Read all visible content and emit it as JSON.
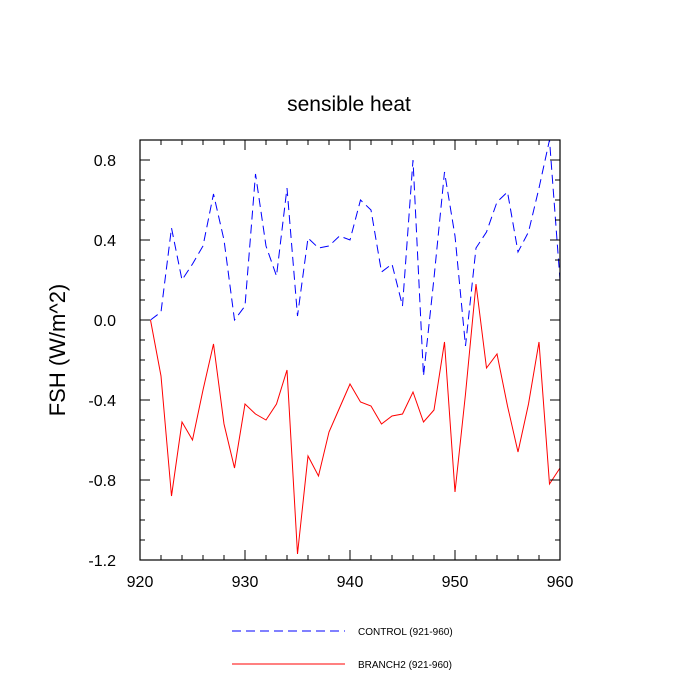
{
  "chart_data": {
    "type": "line",
    "title": "sensible heat",
    "ylabel": "FSH  (W/m^2)",
    "xlabel": "",
    "xlim": [
      921,
      960
    ],
    "ylim": [
      -1.2,
      0.9
    ],
    "xticks": [
      920,
      930,
      940,
      950,
      960
    ],
    "xtick_labels": [
      "920",
      "930",
      "940",
      "950",
      "960"
    ],
    "yticks": [
      0.8,
      0.4,
      0.0,
      -0.4,
      -0.8,
      -1.2
    ],
    "ytick_labels": [
      "0.8",
      "0.4",
      "0.0",
      "-0.4",
      "-0.8",
      "-1.2"
    ],
    "grid": false,
    "legend": "bottom",
    "x": [
      921,
      922,
      923,
      924,
      925,
      926,
      927,
      928,
      929,
      930,
      931,
      932,
      933,
      934,
      935,
      936,
      937,
      938,
      939,
      940,
      941,
      942,
      943,
      944,
      945,
      946,
      947,
      948,
      949,
      950,
      951,
      952,
      953,
      954,
      955,
      956,
      957,
      958,
      959,
      960
    ],
    "series": [
      {
        "name": "CONTROL (921-960)",
        "color": "#0000ff",
        "dash": "dashed",
        "values": [
          0.0,
          0.04,
          0.46,
          0.2,
          0.28,
          0.37,
          0.63,
          0.4,
          0.0,
          0.07,
          0.73,
          0.37,
          0.22,
          0.66,
          0.02,
          0.41,
          0.36,
          0.37,
          0.42,
          0.4,
          0.6,
          0.55,
          0.24,
          0.28,
          0.07,
          0.8,
          -0.28,
          0.21,
          0.74,
          0.42,
          -0.13,
          0.36,
          0.44,
          0.59,
          0.64,
          0.34,
          0.44,
          0.66,
          0.9,
          0.2
        ]
      },
      {
        "name": "BRANCH2 (921-960)",
        "color": "#ff0000",
        "dash": "solid",
        "values": [
          0.0,
          -0.28,
          -0.88,
          -0.51,
          -0.6,
          -0.35,
          -0.12,
          -0.52,
          -0.74,
          -0.42,
          -0.47,
          -0.5,
          -0.42,
          -0.25,
          -1.17,
          -0.68,
          -0.78,
          -0.56,
          -0.44,
          -0.32,
          -0.41,
          -0.43,
          -0.52,
          -0.48,
          -0.47,
          -0.36,
          -0.51,
          -0.45,
          -0.11,
          -0.86,
          -0.37,
          0.18,
          -0.24,
          -0.17,
          -0.43,
          -0.66,
          -0.42,
          -0.11,
          -0.82,
          -0.74
        ]
      }
    ]
  }
}
